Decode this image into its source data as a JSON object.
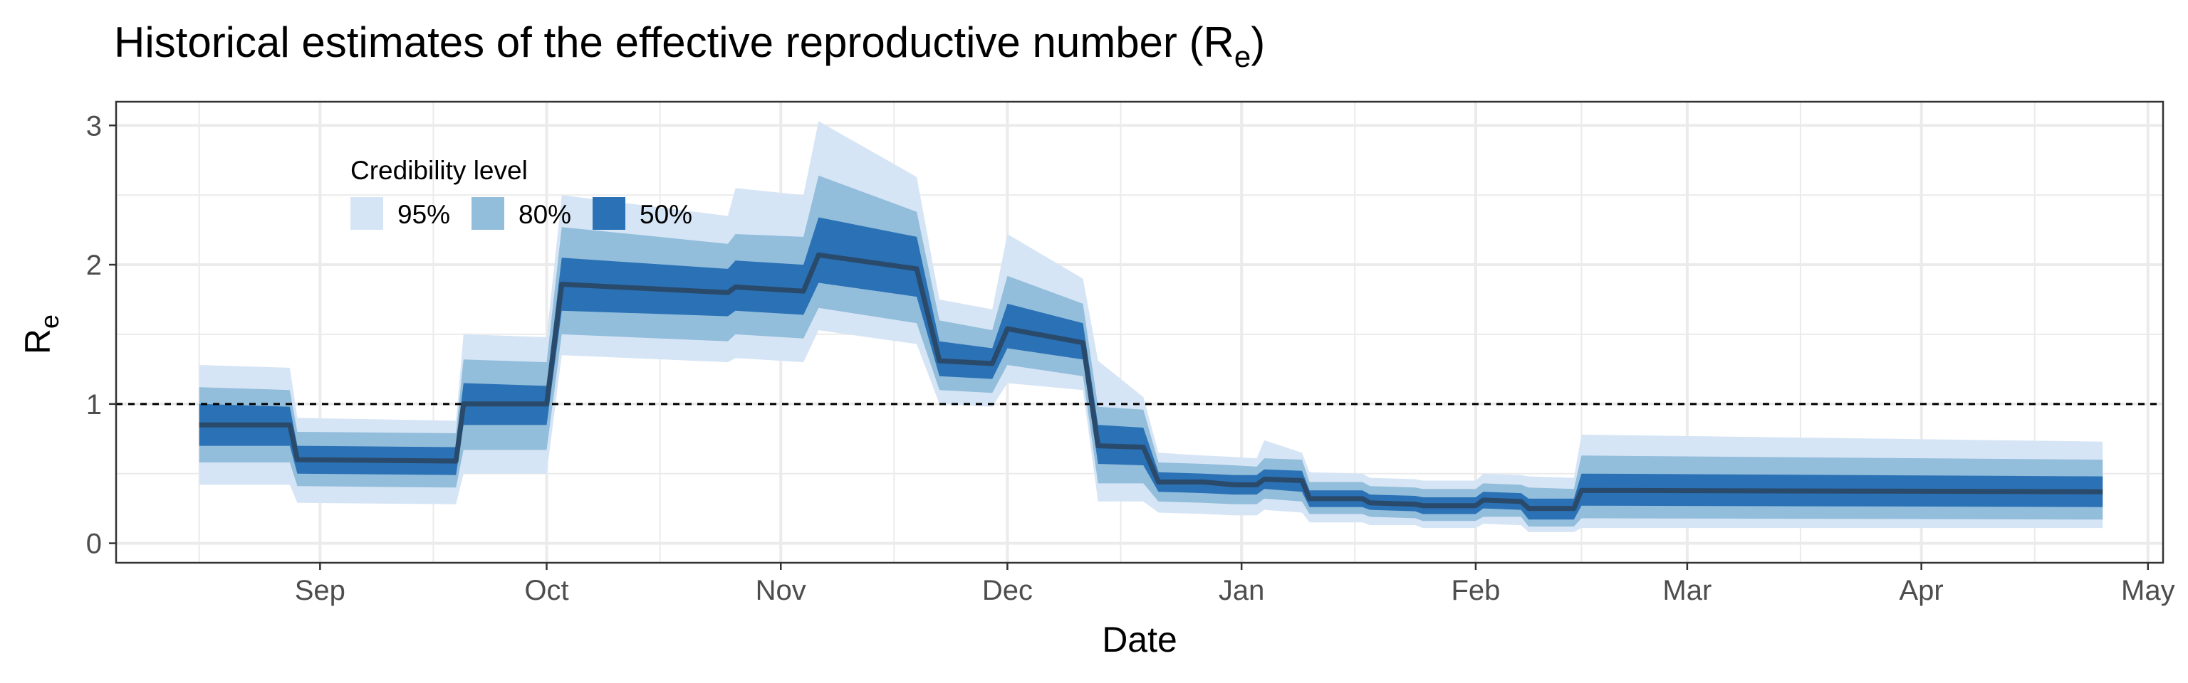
{
  "chart_data": {
    "type": "area",
    "title_main": "Historical estimates of the effective reproductive number (R",
    "title_sub": "e",
    "title_close": ")",
    "xlabel": "Date",
    "ylabel_main": "R",
    "ylabel_sub": "e",
    "xlim": [
      "2020-08-05",
      "2021-05-03"
    ],
    "ylim": [
      -0.14,
      3.17
    ],
    "y_ticks": [
      0,
      1,
      2,
      3
    ],
    "y_tick_labels": [
      "0",
      "1",
      "2",
      "3"
    ],
    "x_ticks": [
      {
        "date": "2020-09-01",
        "label": "Sep"
      },
      {
        "date": "2020-10-01",
        "label": "Oct"
      },
      {
        "date": "2020-11-01",
        "label": "Nov"
      },
      {
        "date": "2020-12-01",
        "label": "Dec"
      },
      {
        "date": "2021-01-01",
        "label": "Jan"
      },
      {
        "date": "2021-02-01",
        "label": "Feb"
      },
      {
        "date": "2021-03-01",
        "label": "Mar"
      },
      {
        "date": "2021-04-01",
        "label": "Apr"
      },
      {
        "date": "2021-05-01",
        "label": "May"
      }
    ],
    "x_minor_ticks": [
      "2020-08-16",
      "2020-09-16",
      "2020-10-16",
      "2020-11-16",
      "2020-12-16",
      "2021-01-16",
      "2021-02-15",
      "2021-03-16",
      "2021-04-16"
    ],
    "reference_line": 1,
    "grid": true,
    "legend": {
      "title": "Credibility level",
      "position": "top-left",
      "items": [
        {
          "label": "95%",
          "color": "#d6e5f5"
        },
        {
          "label": "80%",
          "color": "#92bddb"
        },
        {
          "label": "50%",
          "color": "#2a71b5"
        }
      ]
    },
    "median_color": "#2a4a6b",
    "series": [
      {
        "x": "2020-08-16",
        "median": 0.85,
        "lo50": 0.7,
        "hi50": 1.0,
        "lo80": 0.58,
        "hi80": 1.12,
        "lo95": 0.42,
        "hi95": 1.28
      },
      {
        "x": "2020-08-28",
        "median": 0.85,
        "lo50": 0.7,
        "hi50": 0.98,
        "lo80": 0.58,
        "hi80": 1.1,
        "lo95": 0.42,
        "hi95": 1.26
      },
      {
        "x": "2020-08-29",
        "median": 0.6,
        "lo50": 0.5,
        "hi50": 0.7,
        "lo80": 0.41,
        "hi80": 0.8,
        "lo95": 0.29,
        "hi95": 0.9
      },
      {
        "x": "2020-09-19",
        "median": 0.59,
        "lo50": 0.49,
        "hi50": 0.69,
        "lo80": 0.4,
        "hi80": 0.79,
        "lo95": 0.28,
        "hi95": 0.88
      },
      {
        "x": "2020-09-20",
        "median": 1.0,
        "lo50": 0.85,
        "hi50": 1.15,
        "lo80": 0.67,
        "hi80": 1.32,
        "lo95": 0.5,
        "hi95": 1.5
      },
      {
        "x": "2020-10-01",
        "median": 1.0,
        "lo50": 0.85,
        "hi50": 1.13,
        "lo80": 0.67,
        "hi80": 1.3,
        "lo95": 0.5,
        "hi95": 1.48
      },
      {
        "x": "2020-10-03",
        "median": 1.86,
        "lo50": 1.67,
        "hi50": 2.05,
        "lo80": 1.5,
        "hi80": 2.27,
        "lo95": 1.35,
        "hi95": 2.5
      },
      {
        "x": "2020-10-25",
        "median": 1.8,
        "lo50": 1.63,
        "hi50": 1.97,
        "lo80": 1.45,
        "hi80": 2.15,
        "lo95": 1.3,
        "hi95": 2.35
      },
      {
        "x": "2020-10-26",
        "median": 1.84,
        "lo50": 1.67,
        "hi50": 2.03,
        "lo80": 1.5,
        "hi80": 2.22,
        "lo95": 1.33,
        "hi95": 2.55
      },
      {
        "x": "2020-11-04",
        "median": 1.81,
        "lo50": 1.64,
        "hi50": 2.0,
        "lo80": 1.47,
        "hi80": 2.2,
        "lo95": 1.3,
        "hi95": 2.5
      },
      {
        "x": "2020-11-06",
        "median": 2.07,
        "lo50": 1.87,
        "hi50": 2.34,
        "lo80": 1.69,
        "hi80": 2.64,
        "lo95": 1.53,
        "hi95": 3.03
      },
      {
        "x": "2020-11-19",
        "median": 1.97,
        "lo50": 1.77,
        "hi50": 2.2,
        "lo80": 1.58,
        "hi80": 2.38,
        "lo95": 1.43,
        "hi95": 2.63
      },
      {
        "x": "2020-11-22",
        "median": 1.31,
        "lo50": 1.2,
        "hi50": 1.45,
        "lo80": 1.1,
        "hi80": 1.6,
        "lo95": 1.0,
        "hi95": 1.75
      },
      {
        "x": "2020-11-29",
        "median": 1.29,
        "lo50": 1.18,
        "hi50": 1.4,
        "lo80": 1.08,
        "hi80": 1.53,
        "lo95": 0.98,
        "hi95": 1.68
      },
      {
        "x": "2020-12-01",
        "median": 1.54,
        "lo50": 1.4,
        "hi50": 1.72,
        "lo80": 1.28,
        "hi80": 1.92,
        "lo95": 1.15,
        "hi95": 2.22
      },
      {
        "x": "2020-12-11",
        "median": 1.44,
        "lo50": 1.32,
        "hi50": 1.58,
        "lo80": 1.2,
        "hi80": 1.72,
        "lo95": 1.1,
        "hi95": 1.9
      },
      {
        "x": "2020-12-13",
        "median": 0.7,
        "lo50": 0.57,
        "hi50": 0.85,
        "lo80": 0.43,
        "hi80": 0.98,
        "lo95": 0.3,
        "hi95": 1.31
      },
      {
        "x": "2020-12-19",
        "median": 0.69,
        "lo50": 0.56,
        "hi50": 0.83,
        "lo80": 0.43,
        "hi80": 0.96,
        "lo95": 0.3,
        "hi95": 1.05
      },
      {
        "x": "2020-12-21",
        "median": 0.44,
        "lo50": 0.37,
        "hi50": 0.51,
        "lo80": 0.3,
        "hi80": 0.58,
        "lo95": 0.22,
        "hi95": 0.65
      },
      {
        "x": "2020-12-27",
        "median": 0.44,
        "lo50": 0.36,
        "hi50": 0.5,
        "lo80": 0.29,
        "hi80": 0.57,
        "lo95": 0.21,
        "hi95": 0.63
      },
      {
        "x": "2020-12-31",
        "median": 0.42,
        "lo50": 0.35,
        "hi50": 0.49,
        "lo80": 0.28,
        "hi80": 0.56,
        "lo95": 0.2,
        "hi95": 0.62
      },
      {
        "x": "2021-01-03",
        "median": 0.42,
        "lo50": 0.35,
        "hi50": 0.49,
        "lo80": 0.28,
        "hi80": 0.55,
        "lo95": 0.2,
        "hi95": 0.61
      },
      {
        "x": "2021-01-04",
        "median": 0.46,
        "lo50": 0.39,
        "hi50": 0.53,
        "lo80": 0.32,
        "hi80": 0.61,
        "lo95": 0.24,
        "hi95": 0.74
      },
      {
        "x": "2021-01-09",
        "median": 0.45,
        "lo50": 0.37,
        "hi50": 0.52,
        "lo80": 0.3,
        "hi80": 0.6,
        "lo95": 0.22,
        "hi95": 0.65
      },
      {
        "x": "2021-01-10",
        "median": 0.32,
        "lo50": 0.26,
        "hi50": 0.38,
        "lo80": 0.21,
        "hi80": 0.44,
        "lo95": 0.15,
        "hi95": 0.51
      },
      {
        "x": "2021-01-17",
        "median": 0.32,
        "lo50": 0.26,
        "hi50": 0.38,
        "lo80": 0.21,
        "hi80": 0.44,
        "lo95": 0.15,
        "hi95": 0.5
      },
      {
        "x": "2021-01-18",
        "median": 0.29,
        "lo50": 0.24,
        "hi50": 0.35,
        "lo80": 0.19,
        "hi80": 0.41,
        "lo95": 0.13,
        "hi95": 0.47
      },
      {
        "x": "2021-01-24",
        "median": 0.28,
        "lo50": 0.23,
        "hi50": 0.34,
        "lo80": 0.18,
        "hi80": 0.4,
        "lo95": 0.13,
        "hi95": 0.46
      },
      {
        "x": "2021-01-25",
        "median": 0.27,
        "lo50": 0.21,
        "hi50": 0.33,
        "lo80": 0.16,
        "hi80": 0.39,
        "lo95": 0.11,
        "hi95": 0.45
      },
      {
        "x": "2021-02-01",
        "median": 0.27,
        "lo50": 0.21,
        "hi50": 0.33,
        "lo80": 0.16,
        "hi80": 0.39,
        "lo95": 0.11,
        "hi95": 0.45
      },
      {
        "x": "2021-02-02",
        "median": 0.31,
        "lo50": 0.25,
        "hi50": 0.37,
        "lo80": 0.19,
        "hi80": 0.43,
        "lo95": 0.14,
        "hi95": 0.5
      },
      {
        "x": "2021-02-07",
        "median": 0.3,
        "lo50": 0.24,
        "hi50": 0.36,
        "lo80": 0.19,
        "hi80": 0.42,
        "lo95": 0.13,
        "hi95": 0.49
      },
      {
        "x": "2021-02-08",
        "median": 0.25,
        "lo50": 0.17,
        "hi50": 0.32,
        "lo80": 0.12,
        "hi80": 0.4,
        "lo95": 0.08,
        "hi95": 0.48
      },
      {
        "x": "2021-02-14",
        "median": 0.25,
        "lo50": 0.17,
        "hi50": 0.32,
        "lo80": 0.12,
        "hi80": 0.39,
        "lo95": 0.08,
        "hi95": 0.47
      },
      {
        "x": "2021-02-15",
        "median": 0.38,
        "lo50": 0.27,
        "hi50": 0.5,
        "lo80": 0.18,
        "hi80": 0.63,
        "lo95": 0.11,
        "hi95": 0.78
      },
      {
        "x": "2021-04-25",
        "median": 0.37,
        "lo50": 0.26,
        "hi50": 0.48,
        "lo80": 0.17,
        "hi80": 0.6,
        "lo95": 0.11,
        "hi95": 0.73
      }
    ]
  }
}
